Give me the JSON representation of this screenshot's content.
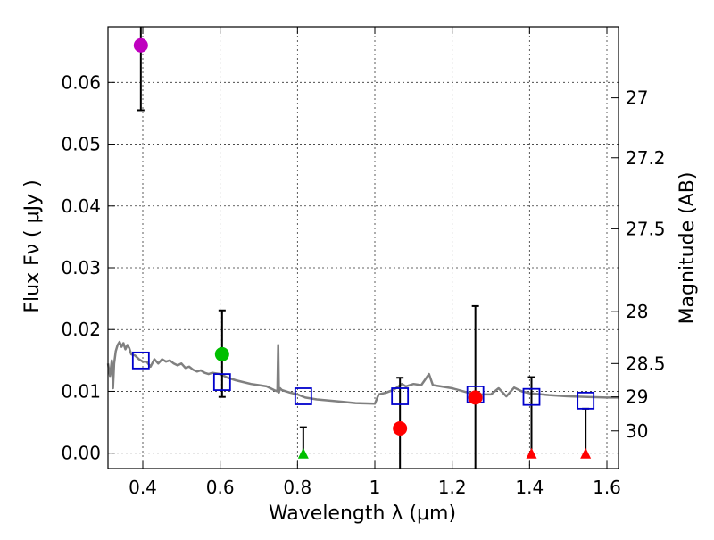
{
  "chart_data": {
    "type": "scatter",
    "title": "",
    "xlabel": "Wavelength  λ (μm)",
    "ylabel": "Flux  Fν  ( μJy )",
    "y2label": "Magnitude (AB)",
    "xlim": [
      0.31,
      1.63
    ],
    "ylim": [
      -0.0025,
      0.069
    ],
    "x_ticks": [
      0.4,
      0.6,
      0.8,
      1.0,
      1.2,
      1.4,
      1.6
    ],
    "x_tick_labels": [
      "0.4",
      "0.6",
      "0.8",
      "1",
      "1.2",
      "1.4",
      "1.6"
    ],
    "y_ticks": [
      0.0,
      0.01,
      0.02,
      0.03,
      0.04,
      0.05,
      0.06
    ],
    "y_tick_labels": [
      "0.00",
      "0.01",
      "0.02",
      "0.03",
      "0.04",
      "0.05",
      "0.06"
    ],
    "y2_ticks": [
      {
        "label": "27",
        "flux": 0.0575
      },
      {
        "label": "27.2",
        "flux": 0.0478
      },
      {
        "label": "27.5",
        "flux": 0.0363
      },
      {
        "label": "28",
        "flux": 0.0229
      },
      {
        "label": "28.5",
        "flux": 0.0145
      },
      {
        "label": "29",
        "flux": 0.0091
      },
      {
        "label": "30",
        "flux": 0.0036
      }
    ],
    "grid": true,
    "series": [
      {
        "name": "observed_flux",
        "marker": "circle",
        "points": [
          {
            "x": 0.395,
            "y": 0.066,
            "color": "#bf00bf",
            "err_low": 0.0105,
            "err_high": 0.008
          },
          {
            "x": 0.605,
            "y": 0.016,
            "color": "#00bf00",
            "err_low": 0.0069,
            "err_high": 0.0071
          },
          {
            "x": 1.065,
            "y": 0.004,
            "color": "#ff0000",
            "err_low": 0.0075,
            "err_high": 0.0082
          },
          {
            "x": 1.26,
            "y": 0.009,
            "color": "#ff0000",
            "err_low": 0.0125,
            "err_high": 0.0148
          }
        ]
      },
      {
        "name": "upper_limits",
        "marker": "triangle",
        "points": [
          {
            "x": 0.815,
            "y": 0.0,
            "color": "#00bf00",
            "err_low": 0.0,
            "err_high": 0.0042
          },
          {
            "x": 1.405,
            "y": 0.0,
            "color": "#ff0000",
            "err_low": 0.0,
            "err_high": 0.0123
          },
          {
            "x": 1.545,
            "y": 0.0,
            "color": "#ff0000",
            "err_low": 0.0,
            "err_high": 0.0072
          }
        ]
      },
      {
        "name": "model_photometry",
        "marker": "square",
        "color": "#0000cc",
        "points": [
          {
            "x": 0.395,
            "y": 0.015
          },
          {
            "x": 0.605,
            "y": 0.0115
          },
          {
            "x": 0.815,
            "y": 0.0092
          },
          {
            "x": 1.065,
            "y": 0.0092
          },
          {
            "x": 1.26,
            "y": 0.0095
          },
          {
            "x": 1.405,
            "y": 0.0091
          },
          {
            "x": 1.545,
            "y": 0.0085
          }
        ]
      },
      {
        "name": "model_spectrum",
        "type": "line",
        "color": "#808080",
        "x": [
          0.31,
          0.315,
          0.32,
          0.323,
          0.326,
          0.33,
          0.335,
          0.34,
          0.345,
          0.35,
          0.355,
          0.36,
          0.365,
          0.37,
          0.38,
          0.39,
          0.4,
          0.41,
          0.42,
          0.43,
          0.44,
          0.45,
          0.46,
          0.47,
          0.48,
          0.49,
          0.5,
          0.51,
          0.52,
          0.53,
          0.54,
          0.55,
          0.56,
          0.57,
          0.58,
          0.6,
          0.62,
          0.64,
          0.66,
          0.68,
          0.7,
          0.72,
          0.74,
          0.748,
          0.75,
          0.752,
          0.755,
          0.76,
          0.78,
          0.8,
          0.82,
          0.85,
          0.9,
          0.95,
          1.0,
          1.01,
          1.03,
          1.05,
          1.07,
          1.08,
          1.1,
          1.12,
          1.14,
          1.15,
          1.17,
          1.2,
          1.24,
          1.27,
          1.3,
          1.32,
          1.34,
          1.36,
          1.38,
          1.4,
          1.45,
          1.5,
          1.55,
          1.6,
          1.63
        ],
        "y": [
          0.0145,
          0.0125,
          0.015,
          0.0105,
          0.0145,
          0.0165,
          0.0175,
          0.018,
          0.0172,
          0.0178,
          0.0168,
          0.0175,
          0.017,
          0.016,
          0.0158,
          0.0152,
          0.0148,
          0.0148,
          0.014,
          0.0152,
          0.0145,
          0.0152,
          0.0148,
          0.015,
          0.0145,
          0.0142,
          0.0145,
          0.0138,
          0.014,
          0.0135,
          0.0132,
          0.0134,
          0.013,
          0.0128,
          0.013,
          0.0128,
          0.0122,
          0.0118,
          0.0115,
          0.0112,
          0.011,
          0.0108,
          0.0102,
          0.01,
          0.0175,
          0.0098,
          0.0105,
          0.0102,
          0.0098,
          0.0095,
          0.009,
          0.0087,
          0.0084,
          0.0081,
          0.008,
          0.0095,
          0.0098,
          0.0103,
          0.0112,
          0.0108,
          0.0112,
          0.011,
          0.0128,
          0.011,
          0.0108,
          0.0105,
          0.0098,
          0.0095,
          0.0095,
          0.0105,
          0.0092,
          0.0106,
          0.01,
          0.0097,
          0.0094,
          0.0092,
          0.0091,
          0.009,
          0.009
        ]
      }
    ]
  }
}
